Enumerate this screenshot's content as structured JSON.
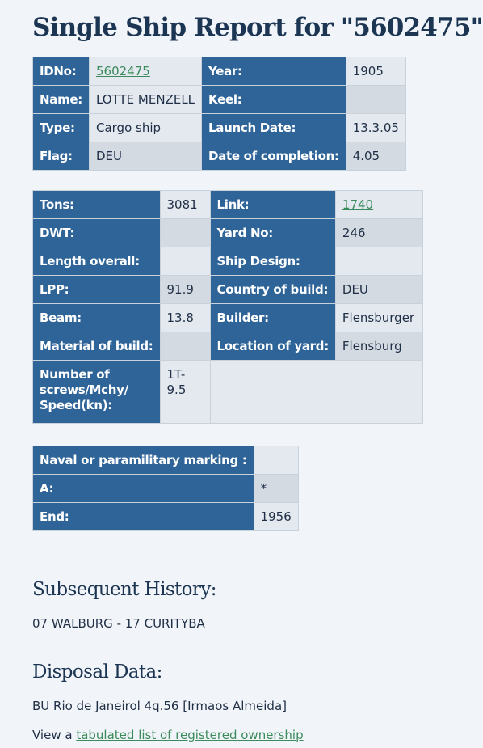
{
  "title": "Single Ship Report for \"5602475\"",
  "table1": {
    "rows": [
      {
        "l1": "IDNo:",
        "v1": "5602475",
        "l2": "Year:",
        "v2": "1905"
      },
      {
        "l1": "Name:",
        "v1": "LOTTE MENZELL",
        "l2": "Keel:",
        "v2": ""
      },
      {
        "l1": "Type:",
        "v1": "Cargo ship",
        "l2": "Launch Date:",
        "v2": "13.3.05"
      },
      {
        "l1": "Flag:",
        "v1": "DEU",
        "l2": "Date of completion:",
        "v2": "4.05"
      }
    ]
  },
  "table2": {
    "rows": [
      {
        "l1": "Tons:",
        "v1": "3081",
        "l2": "Link:",
        "v2": "1740"
      },
      {
        "l1": "DWT:",
        "v1": "",
        "l2": "Yard No:",
        "v2": "246"
      },
      {
        "l1": "Length overall:",
        "v1": "",
        "l2": "Ship Design:",
        "v2": ""
      },
      {
        "l1": "LPP:",
        "v1": "91.9",
        "l2": "Country of build:",
        "v2": "DEU"
      },
      {
        "l1": "Beam:",
        "v1": "13.8",
        "l2": "Builder:",
        "v2": "Flensburger"
      },
      {
        "l1": "Material of build:",
        "v1": "",
        "l2": "Location of yard:",
        "v2": "Flensburg"
      },
      {
        "l1": "Number of screws/Mchy/ Speed(kn):",
        "v1": "1T-9.5"
      }
    ]
  },
  "table3": {
    "rows": [
      {
        "l": "Naval or paramilitary marking :",
        "v": ""
      },
      {
        "l": "A:",
        "v": "*"
      },
      {
        "l": "End:",
        "v": "1956"
      }
    ]
  },
  "history": {
    "title": "Subsequent History:",
    "text": "07 WALBURG - 17 CURITYBA"
  },
  "disposal": {
    "title": "Disposal Data:",
    "text": "BU Rio de Janeirol 4q.56 [Irmaos Almeida]"
  },
  "ownership": {
    "prefix": "View a ",
    "link": "tabulated list of registered ownership"
  },
  "colors": {
    "header_cell": "#2f6499",
    "value_cell": "#e4e9f0",
    "value_cell_alt": "#d4dae2",
    "link": "#3a8a5b",
    "heading": "#1b3553"
  }
}
